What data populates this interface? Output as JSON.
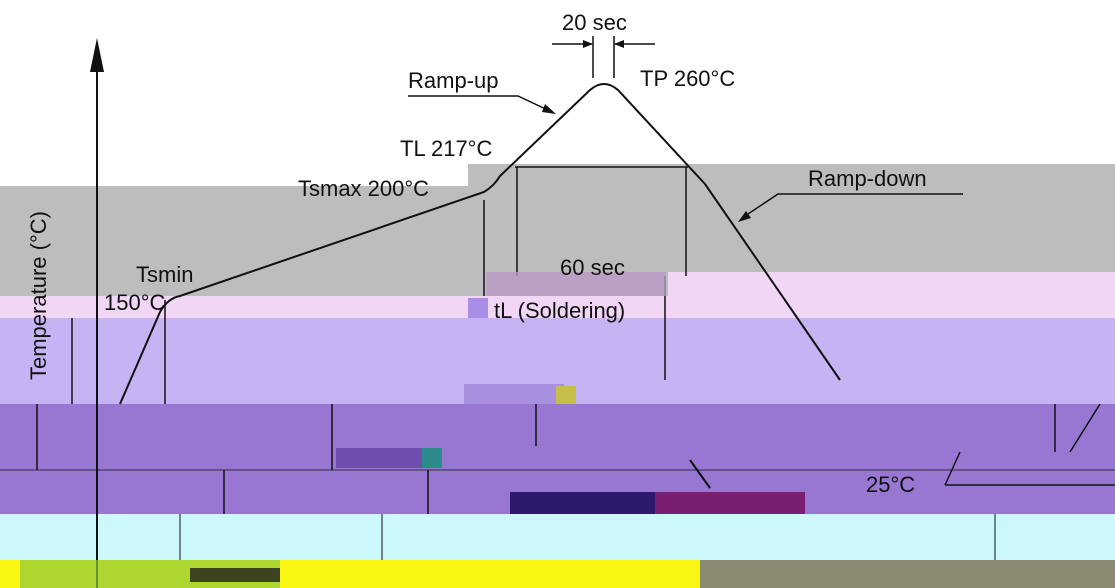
{
  "diagram": {
    "y_axis_label": "Temperature (°C)",
    "labels": {
      "dwell_peak": "20 sec",
      "peak": "TP 260°C",
      "ramp_up": "Ramp-up",
      "liquidus": "TL 217°C",
      "tsmax": "Tsmax 200°C",
      "ramp_down": "Ramp-down",
      "tsmin": "Tsmin",
      "tsmin_value": "150°C",
      "dwell_liquidus": "60 sec",
      "soldering": "tL (Soldering)",
      "ambient": "25°C"
    }
  },
  "colors": {
    "gray_band": "#bdbdbd",
    "pink_band": "#f1d6f6",
    "lavender_band": "#c6b3f4",
    "purple_band": "#9877d3",
    "cyan_band": "#cdf8fb",
    "yellow_band": "#f9f712"
  }
}
